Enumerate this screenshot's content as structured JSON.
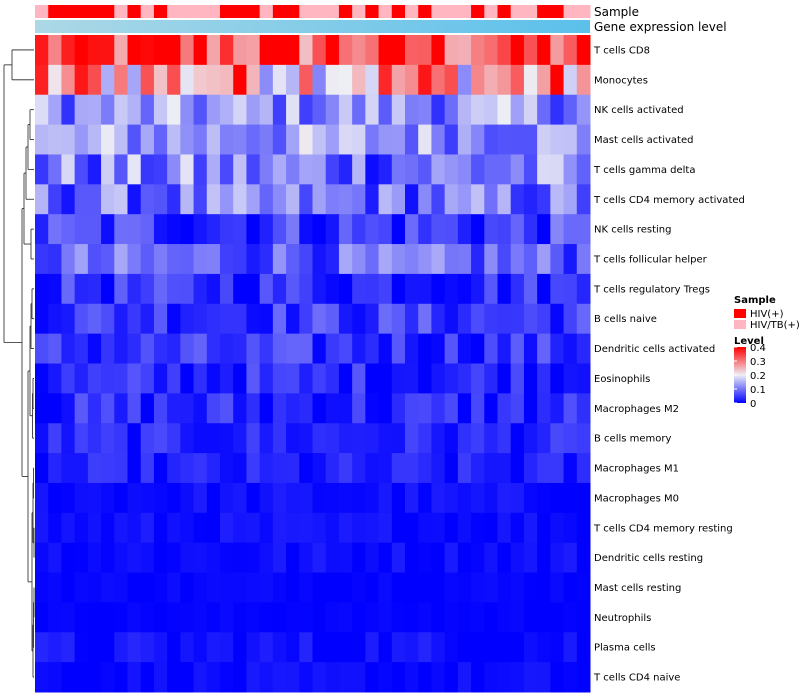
{
  "chart_data": {
    "type": "heatmap",
    "annotation_labels": [
      "Sample",
      "Gene expression level"
    ],
    "rows": [
      "T cells CD8",
      "Monocytes",
      "NK cells activated",
      "Mast cells activated",
      "T cells gamma delta",
      "T cells CD4 memory activated",
      "NK cells resting",
      "T cells follicular helper",
      "T cells regulatory  Tregs",
      "B cells naive",
      "Dendritic cells activated",
      "Eosinophils",
      "Macrophages M2",
      "B cells memory",
      "Macrophages M1",
      "Macrophages M0",
      "T cells CD4 memory resting",
      "Dendritic cells resting",
      "Mast cells resting",
      "Neutrophils",
      "Plasma cells",
      "T cells CD4 naive"
    ],
    "n_columns": 42,
    "sample_groups": [
      "HIV/TB(+)",
      "HIV(+)",
      "HIV(+)",
      "HIV(+)",
      "HIV(+)",
      "HIV(+)",
      "HIV/TB(+)",
      "HIV(+)",
      "HIV/TB(+)",
      "HIV(+)",
      "HIV/TB(+)",
      "HIV/TB(+)",
      "HIV/TB(+)",
      "HIV/TB(+)",
      "HIV(+)",
      "HIV(+)",
      "HIV(+)",
      "HIV/TB(+)",
      "HIV(+)",
      "HIV(+)",
      "HIV/TB(+)",
      "HIV/TB(+)",
      "HIV/TB(+)",
      "HIV(+)",
      "HIV/TB(+)",
      "HIV(+)",
      "HIV/TB(+)",
      "HIV(+)",
      "HIV/TB(+)",
      "HIV(+)",
      "HIV/TB(+)",
      "HIV/TB(+)",
      "HIV/TB(+)",
      "HIV(+)",
      "HIV/TB(+)",
      "HIV(+)",
      "HIV/TB(+)",
      "HIV/TB(+)",
      "HIV(+)",
      "HIV(+)",
      "HIV/TB(+)",
      "HIV/TB(+)"
    ],
    "row_means": [
      0.34,
      0.27,
      0.12,
      0.13,
      0.1,
      0.09,
      0.05,
      0.08,
      0.04,
      0.05,
      0.04,
      0.03,
      0.03,
      0.03,
      0.02,
      0.01,
      0.01,
      0.01,
      0.005,
      0.003,
      0.01,
      0.005
    ],
    "row_spread": [
      0.08,
      0.1,
      0.05,
      0.05,
      0.06,
      0.05,
      0.04,
      0.04,
      0.03,
      0.03,
      0.03,
      0.03,
      0.03,
      0.02,
      0.02,
      0.01,
      0.01,
      0.01,
      0.005,
      0.003,
      0.015,
      0.01
    ],
    "legend": {
      "sample_title": "Sample",
      "sample_entries": [
        {
          "label": "HIV(+)",
          "color": "#FF0000"
        },
        {
          "label": "HIV/TB(+)",
          "color": "#FFB6C1"
        }
      ],
      "level_title": "Level",
      "level_ticks": [
        "0.4",
        "0.3",
        "0.2",
        "0.1",
        "0"
      ],
      "level_values": [
        0.4,
        0.3,
        0.2,
        0.1,
        0
      ],
      "colors": {
        "low": "#0000FF",
        "mid": "#EEEEF5",
        "high": "#FF0000"
      }
    },
    "annotation_gradient": {
      "from": "#ADD8E6",
      "to": "#5BC0EB"
    },
    "value_range": [
      0,
      0.4
    ]
  }
}
